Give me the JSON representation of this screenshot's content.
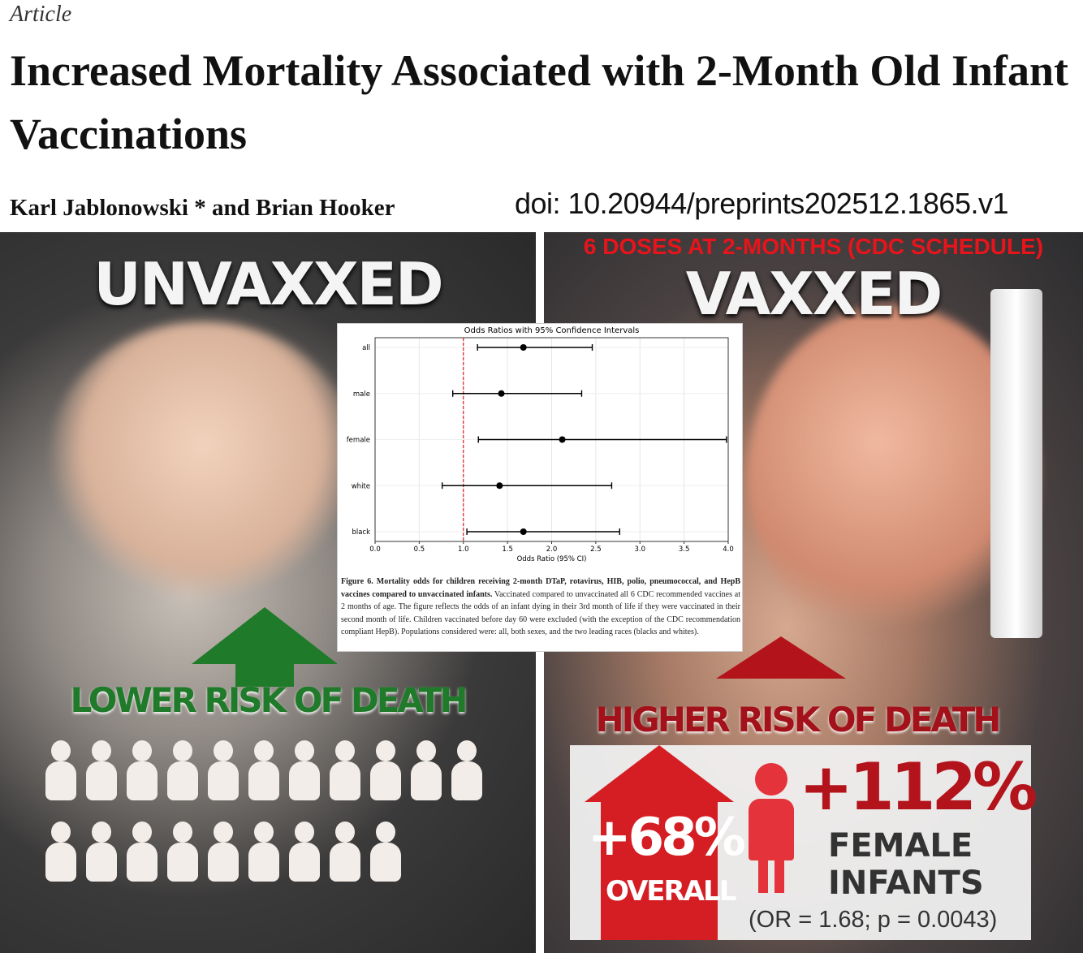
{
  "header": {
    "article_label": "Article",
    "title": "Increased Mortality Associated with 2-Month Old Infant Vaccinations",
    "authors": "Karl Jablonowski * and Brian Hooker",
    "doi": "doi: 10.20944/preprints202512.1865.v1"
  },
  "left": {
    "heading": "UNVAXXED",
    "risk_label": "LOWER RISK OF DEATH",
    "accent": "#1f7a2a",
    "people_rows": [
      11,
      9
    ]
  },
  "right": {
    "dose_banner": "6 DOSES AT 2-MONTHS (CDC SCHEDULE)",
    "heading": "VAXXED",
    "risk_label": "HIGHER RISK OF DEATH",
    "accent": "#b3141b",
    "overall_value": "+68%",
    "overall_label": "OVERALL",
    "female_value": "+112%",
    "female_label_1": "FEMALE",
    "female_label_2": "INFANTS",
    "stat_note": "(OR = 1.68; p = 0.0043)"
  },
  "figure": {
    "caption_bold": "Figure 6. Mortality odds for children receiving 2-month DTaP, rotavirus, HIB, polio, pneumococcal, and HepB vaccines compared to unvaccinated infants.",
    "caption_text": " Vaccinated compared to unvaccinated all 6 CDC recommended vaccines at 2 months of age. The figure reflects the odds of an infant dying in their 3rd month of life if they were vaccinated in their second month of life. Children vaccinated before day 60 were excluded (with the exception of the CDC recommendation compliant HepB).    Populations considered were: all, both sexes, and the two leading races (blacks and whites)."
  },
  "chart_data": {
    "type": "scatter",
    "title": "Odds Ratios with 95% Confidence Intervals",
    "xlabel": "Odds Ratio (95% CI)",
    "ylabel": "",
    "xlim": [
      0,
      4
    ],
    "xticks": [
      "0.0",
      "0.5",
      "1.0",
      "1.5",
      "2.0",
      "2.5",
      "3.0",
      "3.5",
      "4.0"
    ],
    "categories": [
      "all",
      "male",
      "female",
      "white",
      "black"
    ],
    "odds_ratio": [
      1.68,
      1.43,
      2.12,
      1.41,
      1.68
    ],
    "ci_low": [
      1.16,
      0.88,
      1.17,
      0.76,
      1.04
    ],
    "ci_high": [
      2.46,
      2.34,
      3.98,
      2.68,
      2.77
    ],
    "reference_line": 1.0,
    "reference_color": "#e41a1c",
    "grid": true
  }
}
